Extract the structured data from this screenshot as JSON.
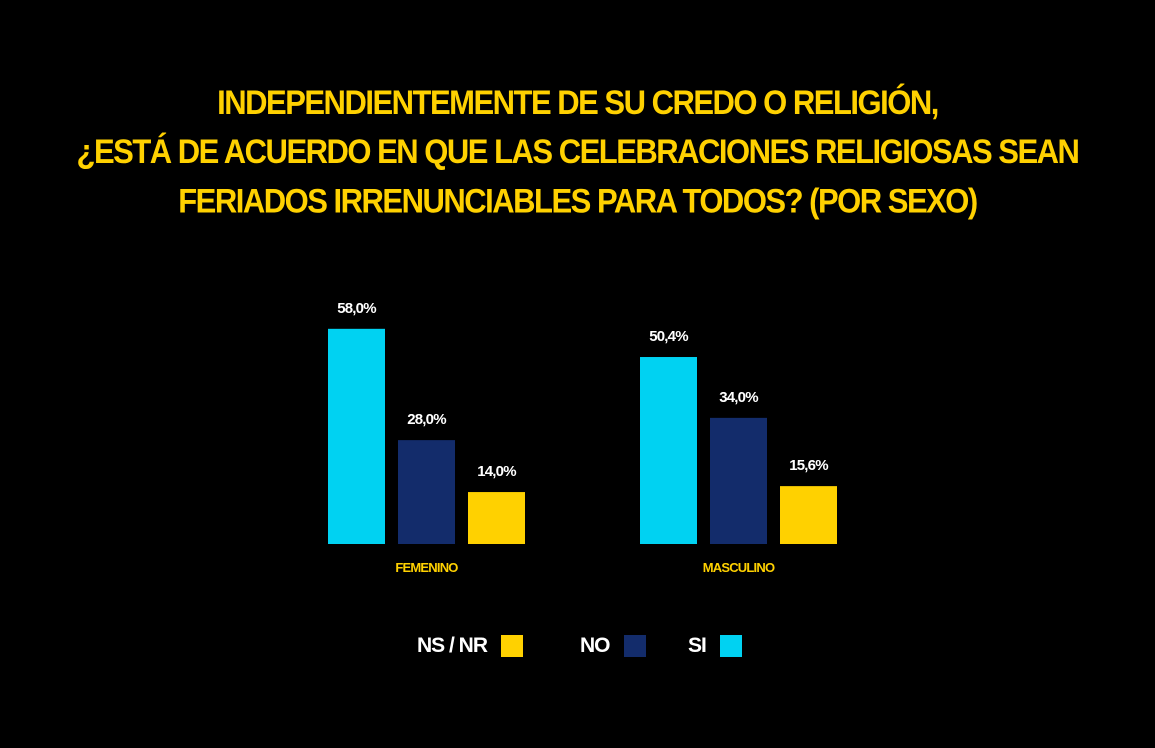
{
  "title": {
    "line1": "INDEPENDIENTEMENTE DE SU CREDO O RELIGIÓN,",
    "line2": "¿ESTÁ DE ACUERDO EN QUE LAS CELEBRACIONES RELIGIOSAS SEAN",
    "line3": "FERIADOS IRRENUNCIABLES PARA TODOS? (POR SEXO)"
  },
  "legend": [
    {
      "label": "NS / NR",
      "color": "#FFD100"
    },
    {
      "label": "NO",
      "color": "#132C6B"
    },
    {
      "label": "SI",
      "color": "#00D2F2"
    }
  ],
  "chart_data": {
    "type": "bar",
    "categories": [
      "FEMENINO",
      "MASCULINO"
    ],
    "series": [
      {
        "name": "SI",
        "color": "#00D2F2",
        "values": [
          58.0,
          50.4
        ],
        "labels": [
          "58,0%",
          "50,4%"
        ]
      },
      {
        "name": "NO",
        "color": "#132C6B",
        "values": [
          28.0,
          34.0
        ],
        "labels": [
          "28,0%",
          "34,0%"
        ]
      },
      {
        "name": "NS / NR",
        "color": "#FFD100",
        "values": [
          14.0,
          15.6
        ],
        "labels": [
          "14,0%",
          "15,6%"
        ]
      }
    ],
    "ylim": [
      0,
      100
    ],
    "grid": false,
    "legend_position": "bottom"
  }
}
